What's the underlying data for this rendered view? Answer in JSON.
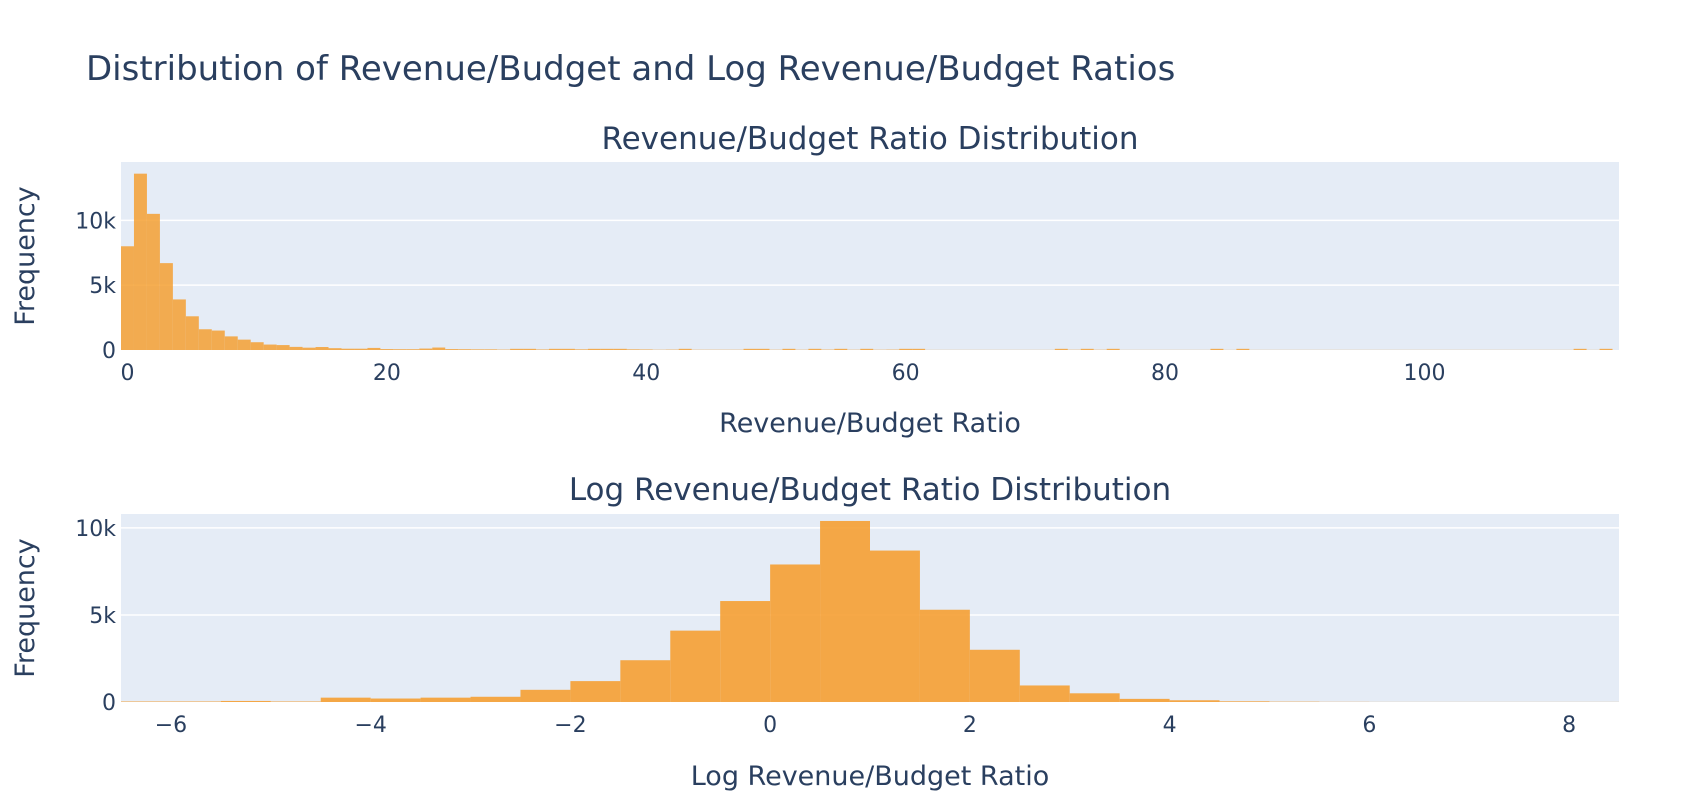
{
  "figure": {
    "title": "Distribution of Revenue/Budget and Log Revenue/Budget Ratios"
  },
  "colors": {
    "bar": "#f5a033",
    "plot_bg": "#e5ecf6",
    "grid": "#ffffff",
    "text": "#2a3f5f"
  },
  "chart_data": [
    {
      "type": "bar",
      "title": "Revenue/Budget Ratio Distribution",
      "xlabel": "Revenue/Budget Ratio",
      "ylabel": "Frequency",
      "xlim": [
        -0.5,
        115
      ],
      "ylim": [
        0,
        14500
      ],
      "grid": true,
      "bin_width": 1,
      "bin_start": -0.5,
      "values": [
        8000,
        13600,
        10500,
        6700,
        3900,
        2600,
        1600,
        1500,
        1050,
        800,
        600,
        420,
        380,
        240,
        180,
        230,
        140,
        100,
        100,
        160,
        70,
        60,
        60,
        110,
        190,
        70,
        60,
        50,
        50,
        30,
        90,
        90,
        40,
        90,
        90,
        50,
        90,
        90,
        90,
        50,
        40,
        20,
        30,
        90,
        20,
        20,
        20,
        20,
        90,
        90,
        20,
        90,
        20,
        90,
        30,
        90,
        20,
        90,
        20,
        30,
        90,
        90,
        10,
        10,
        10,
        10,
        10,
        10,
        10,
        10,
        10,
        10,
        90,
        20,
        90,
        20,
        90,
        10,
        10,
        10,
        10,
        10,
        10,
        10,
        90,
        10,
        90,
        10,
        10,
        10,
        10,
        10,
        10,
        10,
        10,
        10,
        10,
        10,
        10,
        10,
        10,
        10,
        10,
        10,
        10,
        10,
        10,
        10,
        10,
        10,
        10,
        10,
        90,
        10,
        90
      ],
      "xticks": [
        0,
        20,
        40,
        60,
        80,
        100
      ],
      "xtick_labels": [
        "0",
        "20",
        "40",
        "60",
        "80",
        "100"
      ],
      "yticks": [
        0,
        5000,
        10000
      ],
      "ytick_labels": [
        "0",
        "5k",
        "10k"
      ]
    },
    {
      "type": "bar",
      "title": "Log Revenue/Budget Ratio Distribution",
      "xlabel": "Log Revenue/Budget Ratio",
      "ylabel": "Frequency",
      "xlim": [
        -6.5,
        8.5
      ],
      "ylim": [
        0,
        10800
      ],
      "grid": true,
      "bin_width": 0.5,
      "bin_start": -6.5,
      "values": [
        30,
        30,
        60,
        30,
        250,
        200,
        250,
        300,
        700,
        1200,
        2400,
        4100,
        5800,
        7900,
        10400,
        8700,
        5300,
        3000,
        950,
        500,
        180,
        100,
        40,
        20,
        10,
        5,
        5,
        5,
        5,
        5
      ],
      "xticks": [
        -6,
        -4,
        -2,
        0,
        2,
        4,
        6,
        8
      ],
      "xtick_labels": [
        "−6",
        "−4",
        "−2",
        "0",
        "2",
        "4",
        "6",
        "8"
      ],
      "yticks": [
        0,
        5000,
        10000
      ],
      "ytick_labels": [
        "0",
        "5k",
        "10k"
      ]
    }
  ]
}
